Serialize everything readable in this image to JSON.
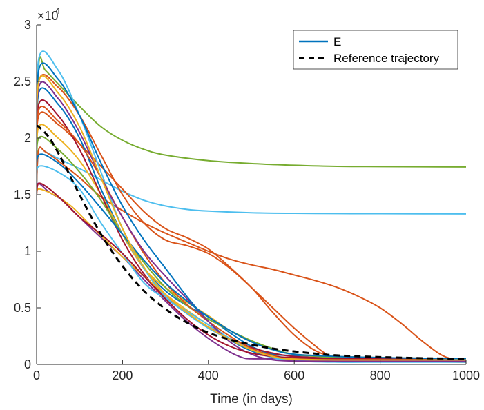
{
  "chart_data": {
    "type": "line",
    "xlabel": "Time (in days)",
    "ylabel": "",
    "title": "",
    "xlim": [
      0,
      1000
    ],
    "ylim": [
      0,
      30000
    ],
    "y_multiplier_label": "×10",
    "y_multiplier_exponent": "4",
    "xticks": [
      0,
      200,
      400,
      600,
      800,
      1000
    ],
    "xtick_labels": [
      "0",
      "200",
      "400",
      "600",
      "800",
      "1000"
    ],
    "yticks": [
      0,
      5000,
      10000,
      15000,
      20000,
      25000,
      30000
    ],
    "ytick_labels": [
      "0",
      "0.5",
      "1",
      "1.5",
      "2",
      "2.5",
      "3"
    ],
    "grid": false,
    "legend_position": "top-right",
    "legend": [
      {
        "label": "E",
        "style": "solid",
        "color": "#0072bd"
      },
      {
        "label": "Reference trajectory",
        "style": "dashed",
        "color": "#000000"
      }
    ],
    "reference": {
      "x": [
        0,
        5,
        30,
        60,
        100,
        150,
        200,
        250,
        300,
        350,
        400,
        450,
        500,
        550,
        600,
        650,
        700,
        800,
        900,
        1000
      ],
      "y": [
        21000,
        21000,
        20000,
        18000,
        15000,
        11500,
        8700,
        6500,
        4900,
        3700,
        2800,
        2200,
        1750,
        1400,
        1150,
        950,
        800,
        650,
        550,
        500
      ]
    },
    "series": [
      {
        "color": "#77ac30",
        "x": [
          0,
          5,
          20,
          50,
          100,
          150,
          200,
          250,
          300,
          400,
          500,
          600,
          700,
          800,
          900,
          1000
        ],
        "y": [
          16000,
          26500,
          26000,
          24800,
          22800,
          21000,
          19800,
          19000,
          18500,
          18000,
          17750,
          17600,
          17500,
          17480,
          17460,
          17450
        ]
      },
      {
        "color": "#4dbeee",
        "x": [
          0,
          5,
          20,
          50,
          100,
          150,
          200,
          250,
          300,
          350,
          400,
          500,
          600,
          700,
          800,
          900,
          1000
        ],
        "y": [
          16000,
          19000,
          18800,
          18200,
          17300,
          16300,
          15300,
          14500,
          14000,
          13700,
          13550,
          13400,
          13350,
          13330,
          13320,
          13310,
          13300
        ]
      },
      {
        "color": "#d95319",
        "x": [
          0,
          5,
          20,
          50,
          100,
          150,
          200,
          250,
          300,
          350,
          400,
          450,
          500,
          550,
          600,
          650,
          700,
          750,
          800,
          850,
          900,
          950,
          1000
        ],
        "y": [
          16000,
          19000,
          18800,
          18000,
          16500,
          14800,
          13600,
          12500,
          11600,
          10800,
          10000,
          9300,
          8800,
          8400,
          7900,
          7400,
          6800,
          6000,
          5000,
          3600,
          2000,
          700,
          300
        ]
      },
      {
        "color": "#d95319",
        "x": [
          0,
          5,
          50,
          100,
          150,
          200,
          250,
          300,
          350,
          400,
          450,
          500,
          550,
          600,
          650,
          700,
          750,
          800,
          900,
          1000
        ],
        "y": [
          16000,
          22000,
          21200,
          19500,
          17500,
          15500,
          13500,
          12000,
          11200,
          10200,
          8600,
          6800,
          4600,
          2600,
          1200,
          600,
          400,
          300,
          250,
          200
        ]
      },
      {
        "color": "#d95319",
        "x": [
          0,
          5,
          50,
          100,
          150,
          200,
          250,
          300,
          350,
          400,
          450,
          500,
          550,
          600,
          650,
          680,
          720,
          800,
          900,
          1000
        ],
        "y": [
          16000,
          25000,
          24500,
          22000,
          18500,
          15000,
          12500,
          11000,
          10500,
          9800,
          8500,
          6800,
          5000,
          3200,
          1600,
          800,
          300,
          250,
          220,
          200
        ]
      },
      {
        "color": "#0072bd",
        "x": [
          0,
          5,
          50,
          100,
          150,
          200,
          250,
          300,
          350,
          400,
          450,
          500,
          550,
          600,
          700,
          800,
          900,
          1000
        ],
        "y": [
          16000,
          24000,
          23000,
          20000,
          15500,
          11500,
          8500,
          6500,
          5200,
          4200,
          2800,
          1600,
          900,
          800,
          700,
          600,
          550,
          500
        ]
      },
      {
        "color": "#7e2f8e",
        "x": [
          0,
          5,
          30,
          60,
          100,
          150,
          200,
          250,
          300,
          350,
          400,
          450,
          480,
          500,
          550,
          600,
          700,
          800,
          900,
          1000
        ],
        "y": [
          15500,
          16000,
          15200,
          14500,
          13000,
          11200,
          9500,
          7500,
          5600,
          3800,
          2300,
          1100,
          600,
          500,
          500,
          500,
          500,
          500,
          500,
          500
        ]
      },
      {
        "color": "#edb120",
        "x": [
          0,
          5,
          50,
          100,
          150,
          200,
          250,
          300,
          350,
          400,
          450,
          500,
          550,
          600,
          700,
          800,
          900,
          1000
        ],
        "y": [
          16000,
          21000,
          20000,
          18000,
          15000,
          11500,
          8500,
          6800,
          5500,
          4300,
          3000,
          2000,
          1300,
          900,
          700,
          600,
          550,
          500
        ]
      },
      {
        "color": "#a2142f",
        "x": [
          0,
          5,
          50,
          100,
          150,
          200,
          250,
          300,
          350,
          400,
          450,
          500,
          550,
          600,
          700,
          800,
          900,
          1000
        ],
        "y": [
          16000,
          23000,
          22000,
          19000,
          15000,
          11000,
          8000,
          6000,
          4500,
          3300,
          2300,
          1500,
          1000,
          700,
          550,
          500,
          500,
          500
        ]
      },
      {
        "color": "#4dbeee",
        "x": [
          0,
          5,
          50,
          100,
          150,
          200,
          250,
          300,
          350,
          400,
          450,
          500,
          550,
          600,
          700,
          800,
          900,
          1000
        ],
        "y": [
          16000,
          27000,
          26000,
          22000,
          17000,
          12000,
          8500,
          6000,
          4500,
          3200,
          2200,
          1200,
          600,
          300,
          200,
          200,
          200,
          200
        ]
      },
      {
        "color": "#0072bd",
        "x": [
          0,
          5,
          50,
          100,
          150,
          200,
          250,
          300,
          350,
          400,
          450,
          500,
          550,
          600,
          700,
          800,
          900,
          1000
        ],
        "y": [
          16000,
          26000,
          25200,
          22000,
          17800,
          14000,
          11000,
          8500,
          6000,
          3800,
          2200,
          1200,
          700,
          500,
          400,
          400,
          400,
          400
        ]
      },
      {
        "color": "#77ac30",
        "x": [
          0,
          5,
          50,
          100,
          150,
          200,
          250,
          300,
          350,
          400,
          450,
          500,
          550,
          600,
          700,
          800,
          900,
          1000
        ],
        "y": [
          16000,
          20000,
          19000,
          17000,
          14500,
          11500,
          9000,
          6800,
          5200,
          4000,
          3000,
          2100,
          1400,
          900,
          600,
          500,
          500,
          500
        ]
      },
      {
        "color": "#d95319",
        "x": [
          0,
          5,
          50,
          100,
          150,
          200,
          250,
          300,
          350,
          400,
          450,
          500,
          550,
          600,
          700,
          800,
          900,
          1000
        ],
        "y": [
          16000,
          22500,
          21500,
          19500,
          16500,
          13000,
          9800,
          7200,
          5300,
          3800,
          2500,
          1400,
          800,
          500,
          400,
          400,
          400,
          400
        ]
      },
      {
        "color": "#edb120",
        "x": [
          0,
          5,
          40,
          80,
          120,
          160,
          200,
          250,
          300,
          350,
          400,
          450,
          500,
          550,
          600,
          700,
          800,
          900,
          1000
        ],
        "y": [
          15000,
          15500,
          15000,
          14000,
          12500,
          11000,
          9500,
          7800,
          6200,
          4800,
          3500,
          2300,
          1300,
          700,
          500,
          450,
          450,
          450,
          450
        ]
      },
      {
        "color": "#4dbeee",
        "x": [
          0,
          5,
          50,
          100,
          150,
          200,
          250,
          300,
          350,
          400,
          450,
          500,
          550,
          600,
          700,
          800,
          900,
          1000
        ],
        "y": [
          16000,
          17500,
          17000,
          15500,
          12500,
          9800,
          7200,
          5800,
          4700,
          3500,
          2300,
          1300,
          700,
          400,
          300,
          300,
          300,
          300
        ]
      },
      {
        "color": "#7e2f8e",
        "x": [
          0,
          5,
          50,
          100,
          150,
          200,
          250,
          300,
          350,
          400,
          450,
          500,
          550,
          600,
          700,
          800,
          900,
          1000
        ],
        "y": [
          16000,
          24500,
          23500,
          20500,
          16500,
          13000,
          10000,
          7800,
          5800,
          3800,
          2000,
          900,
          400,
          300,
          300,
          300,
          300,
          300
        ]
      },
      {
        "color": "#a2142f",
        "x": [
          0,
          5,
          30,
          60,
          100,
          150,
          200,
          250,
          300,
          350,
          400,
          450,
          500,
          550,
          600,
          700,
          800,
          900,
          1000
        ],
        "y": [
          15000,
          16000,
          15500,
          14500,
          13000,
          11500,
          9800,
          7800,
          5800,
          4000,
          2600,
          1600,
          1000,
          700,
          600,
          500,
          500,
          500,
          500
        ]
      },
      {
        "color": "#0072bd",
        "x": [
          0,
          5,
          50,
          100,
          150,
          200,
          250,
          300,
          350,
          400,
          450,
          500,
          550,
          600,
          700,
          800,
          900,
          1000
        ],
        "y": [
          16000,
          18500,
          17800,
          16000,
          13800,
          11500,
          9200,
          7200,
          5600,
          4200,
          3000,
          2000,
          1300,
          900,
          700,
          600,
          550,
          500
        ]
      },
      {
        "color": "#edb120",
        "x": [
          0,
          5,
          50,
          100,
          150,
          200,
          250,
          300,
          350,
          400,
          450,
          500,
          550,
          600,
          700,
          800,
          900,
          1000
        ],
        "y": [
          16000,
          25000,
          24000,
          21000,
          16500,
          12000,
          8600,
          6200,
          4600,
          3300,
          2200,
          1300,
          700,
          450,
          400,
          400,
          400,
          400
        ]
      }
    ]
  }
}
